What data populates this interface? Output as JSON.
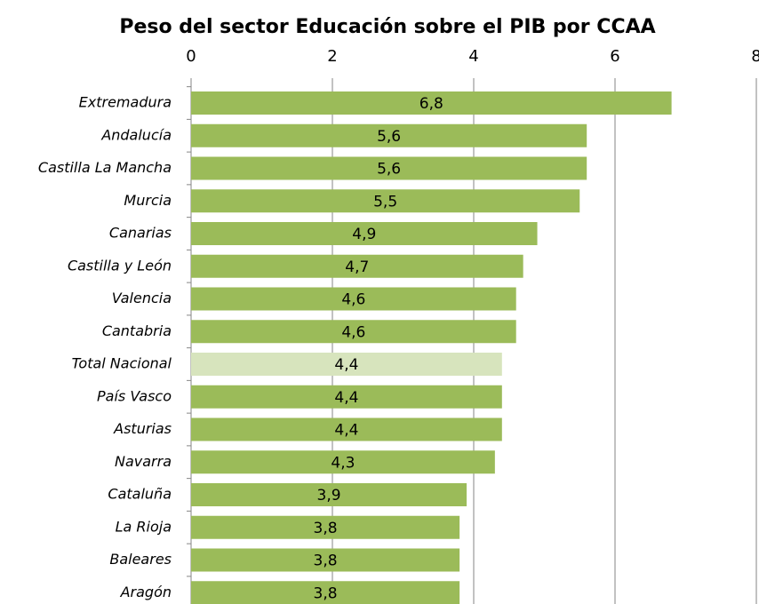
{
  "chart_data": {
    "type": "bar",
    "orientation": "horizontal",
    "title": "Peso del sector Educación sobre el PIB por CCAA",
    "categories": [
      "Extremadura",
      "Andalucía",
      "Castilla La Mancha",
      "Murcia",
      "Canarias",
      "Castilla y León",
      "Valencia",
      "Cantabria",
      "Total Nacional",
      "País Vasco",
      "Asturias",
      "Navarra",
      "Cataluña",
      "La Rioja",
      "Baleares",
      "Aragón"
    ],
    "values": [
      6.8,
      5.6,
      5.6,
      5.5,
      4.9,
      4.7,
      4.6,
      4.6,
      4.4,
      4.4,
      4.4,
      4.3,
      3.9,
      3.8,
      3.8,
      3.8
    ],
    "value_labels": [
      "6,8",
      "5,6",
      "5,6",
      "5,5",
      "4,9",
      "4,7",
      "4,6",
      "4,6",
      "4,4",
      "4,4",
      "4,4",
      "4,3",
      "3,9",
      "3,8",
      "3,8",
      "3,8"
    ],
    "colors": [
      "#9bbb59",
      "#9bbb59",
      "#9bbb59",
      "#9bbb59",
      "#9bbb59",
      "#9bbb59",
      "#9bbb59",
      "#9bbb59",
      "#d7e4bd",
      "#9bbb59",
      "#9bbb59",
      "#9bbb59",
      "#9bbb59",
      "#9bbb59",
      "#9bbb59",
      "#9bbb59"
    ],
    "xlim": [
      0,
      8
    ],
    "xticks": [
      0,
      2,
      4,
      6,
      8
    ],
    "grid": true
  }
}
